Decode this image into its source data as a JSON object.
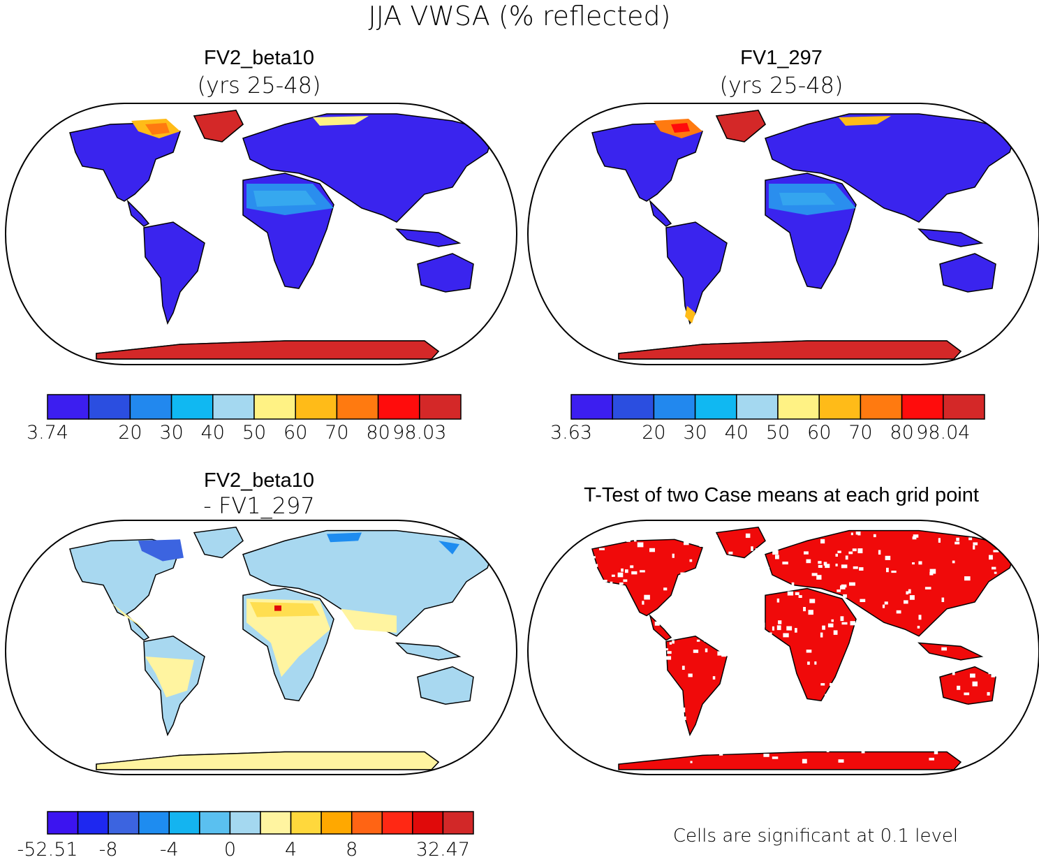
{
  "figure_title": "JJA VWSA (% reflected)",
  "panels": [
    {
      "title": "FV2_beta10",
      "subtitle": "(yrs 25-48)",
      "colorbar": {
        "colors": [
          "#3c1ef0",
          "#2b4ee0",
          "#2288ee",
          "#10b8f2",
          "#a4d8f0",
          "#fff284",
          "#ffbb18",
          "#ff7a10",
          "#ff0c0c",
          "#d42828"
        ],
        "labels": [
          "3.74",
          "",
          "20",
          "30",
          "40",
          "50",
          "60",
          "70",
          "80",
          "98.03"
        ]
      }
    },
    {
      "title": "FV1_297",
      "subtitle": "(yrs 25-48)",
      "colorbar": {
        "colors": [
          "#3c1ef0",
          "#2b4ee0",
          "#2288ee",
          "#10b8f2",
          "#a4d8f0",
          "#fff284",
          "#ffbb18",
          "#ff7a10",
          "#ff0c0c",
          "#d42828"
        ],
        "labels": [
          "3.63",
          "",
          "20",
          "30",
          "40",
          "50",
          "60",
          "70",
          "80",
          "98.04"
        ]
      }
    },
    {
      "title": "FV2_beta10",
      "subtitle": "- FV1_297",
      "colorbar": {
        "colors": [
          "#3c14f0",
          "#1e28f0",
          "#3c64e0",
          "#1e8cf0",
          "#14b4f0",
          "#5ac0f0",
          "#a4d8f0",
          "#fff4a0",
          "#ffd83c",
          "#ffa800",
          "#ff6414",
          "#ff2814",
          "#e00a0a",
          "#d22828"
        ],
        "labels": [
          "-52.51",
          "",
          "-8",
          "",
          "-4",
          "",
          "0",
          "",
          "4",
          "",
          "8",
          "",
          "",
          "32.47"
        ]
      }
    },
    {
      "title": "T-Test of two Case means at each grid point",
      "note": "Cells are significant at 0.1 level"
    }
  ]
}
